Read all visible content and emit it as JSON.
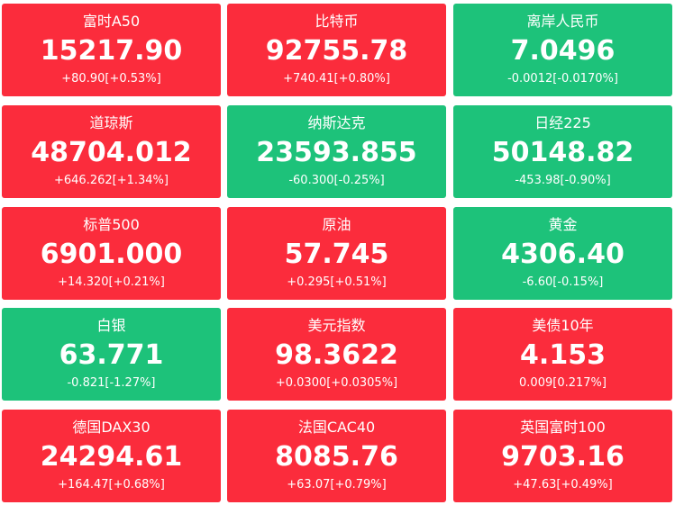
{
  "colors": {
    "up": "#fb2c3c",
    "down": "#1dc27a",
    "text": "#ffffff"
  },
  "tiles": [
    {
      "name": "富时A50",
      "price": "15217.90",
      "change": "+80.90[+0.53%]",
      "trend": "up"
    },
    {
      "name": "比特币",
      "price": "92755.78",
      "change": "+740.41[+0.80%]",
      "trend": "up"
    },
    {
      "name": "离岸人民币",
      "price": "7.0496",
      "change": "-0.0012[-0.0170%]",
      "trend": "down"
    },
    {
      "name": "道琼斯",
      "price": "48704.012",
      "change": "+646.262[+1.34%]",
      "trend": "up"
    },
    {
      "name": "纳斯达克",
      "price": "23593.855",
      "change": "-60.300[-0.25%]",
      "trend": "down"
    },
    {
      "name": "日经225",
      "price": "50148.82",
      "change": "-453.98[-0.90%]",
      "trend": "down"
    },
    {
      "name": "标普500",
      "price": "6901.000",
      "change": "+14.320[+0.21%]",
      "trend": "up"
    },
    {
      "name": "原油",
      "price": "57.745",
      "change": "+0.295[+0.51%]",
      "trend": "up"
    },
    {
      "name": "黄金",
      "price": "4306.40",
      "change": "-6.60[-0.15%]",
      "trend": "down"
    },
    {
      "name": "白银",
      "price": "63.771",
      "change": "-0.821[-1.27%]",
      "trend": "down"
    },
    {
      "name": "美元指数",
      "price": "98.3622",
      "change": "+0.0300[+0.0305%]",
      "trend": "up"
    },
    {
      "name": "美债10年",
      "price": "4.153",
      "change": "0.009[0.217%]",
      "trend": "up"
    },
    {
      "name": "德国DAX30",
      "price": "24294.61",
      "change": "+164.47[+0.68%]",
      "trend": "up"
    },
    {
      "name": "法国CAC40",
      "price": "8085.76",
      "change": "+63.07[+0.79%]",
      "trend": "up"
    },
    {
      "name": "英国富时100",
      "price": "9703.16",
      "change": "+47.63[+0.49%]",
      "trend": "up"
    }
  ]
}
